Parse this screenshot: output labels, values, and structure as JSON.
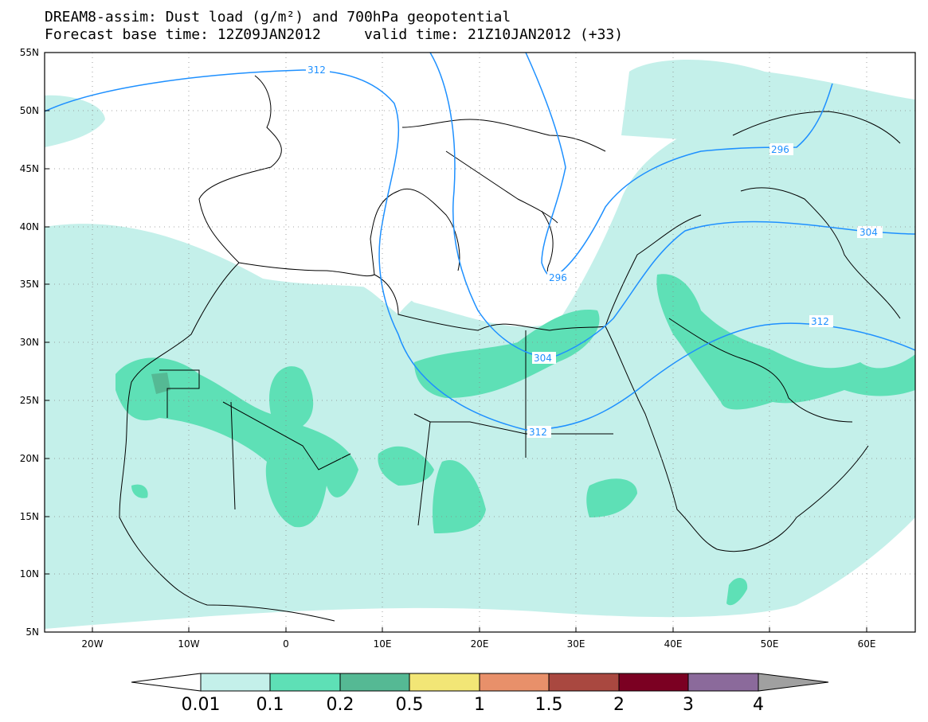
{
  "title": {
    "line1": "DREAM8-assim: Dust load (g/m²) and 700hPa geopotential",
    "line2": "Forecast base time: 12Z09JAN2012     valid time: 21Z10JAN2012 (+33)"
  },
  "axes": {
    "lat_labels": [
      "55N",
      "50N",
      "45N",
      "40N",
      "35N",
      "30N",
      "25N",
      "20N",
      "15N",
      "10N",
      "5N"
    ],
    "lon_labels": [
      "20W",
      "10W",
      "0",
      "10E",
      "20E",
      "30E",
      "40E",
      "50E",
      "60E"
    ]
  },
  "contour_labels": [
    "312",
    "296",
    "304",
    "296",
    "304",
    "312",
    "312"
  ],
  "colorbar": {
    "labels": [
      "0.01",
      "0.1",
      "0.2",
      "0.5",
      "1",
      "1.5",
      "2",
      "3",
      "4"
    ],
    "colors": [
      "#ffffff",
      "#c4f0ea",
      "#5ee0b6",
      "#55b994",
      "#f2e676",
      "#e8906a",
      "#a94840",
      "#7b0022",
      "#8b6a9b",
      "#a0a0a0"
    ]
  },
  "colors": {
    "dust_low": "#c4f0ea",
    "dust_mid": "#5ee0b6",
    "dust_high": "#55b994",
    "contour": "#1e90ff"
  }
}
